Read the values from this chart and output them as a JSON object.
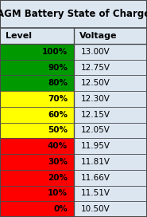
{
  "title": "AGM Battery State of Charge",
  "col1_header": "Level",
  "col2_header": "Voltage",
  "rows": [
    {
      "level": "100%",
      "voltage": "13.00V",
      "color": "#009900"
    },
    {
      "level": "90%",
      "voltage": "12.75V",
      "color": "#009900"
    },
    {
      "level": "80%",
      "voltage": "12.50V",
      "color": "#009900"
    },
    {
      "level": "70%",
      "voltage": "12.30V",
      "color": "#ffff00"
    },
    {
      "level": "60%",
      "voltage": "12.15V",
      "color": "#ffff00"
    },
    {
      "level": "50%",
      "voltage": "12.05V",
      "color": "#ffff00"
    },
    {
      "level": "40%",
      "voltage": "11.95V",
      "color": "#ff0000"
    },
    {
      "level": "30%",
      "voltage": "11.81V",
      "color": "#ff0000"
    },
    {
      "level": "20%",
      "voltage": "11.66V",
      "color": "#ff0000"
    },
    {
      "level": "10%",
      "voltage": "11.51V",
      "color": "#ff0000"
    },
    {
      "level": "0%",
      "voltage": "10.50V",
      "color": "#ff0000"
    }
  ],
  "bg_color": "#dce6f1",
  "border_color": "#4a4a4a",
  "header_bg": "#dce6f1",
  "voltage_bg": "#dce6f1",
  "title_fontsize": 8.5,
  "header_fontsize": 8,
  "cell_fontsize": 7.5,
  "col_split": 0.5
}
